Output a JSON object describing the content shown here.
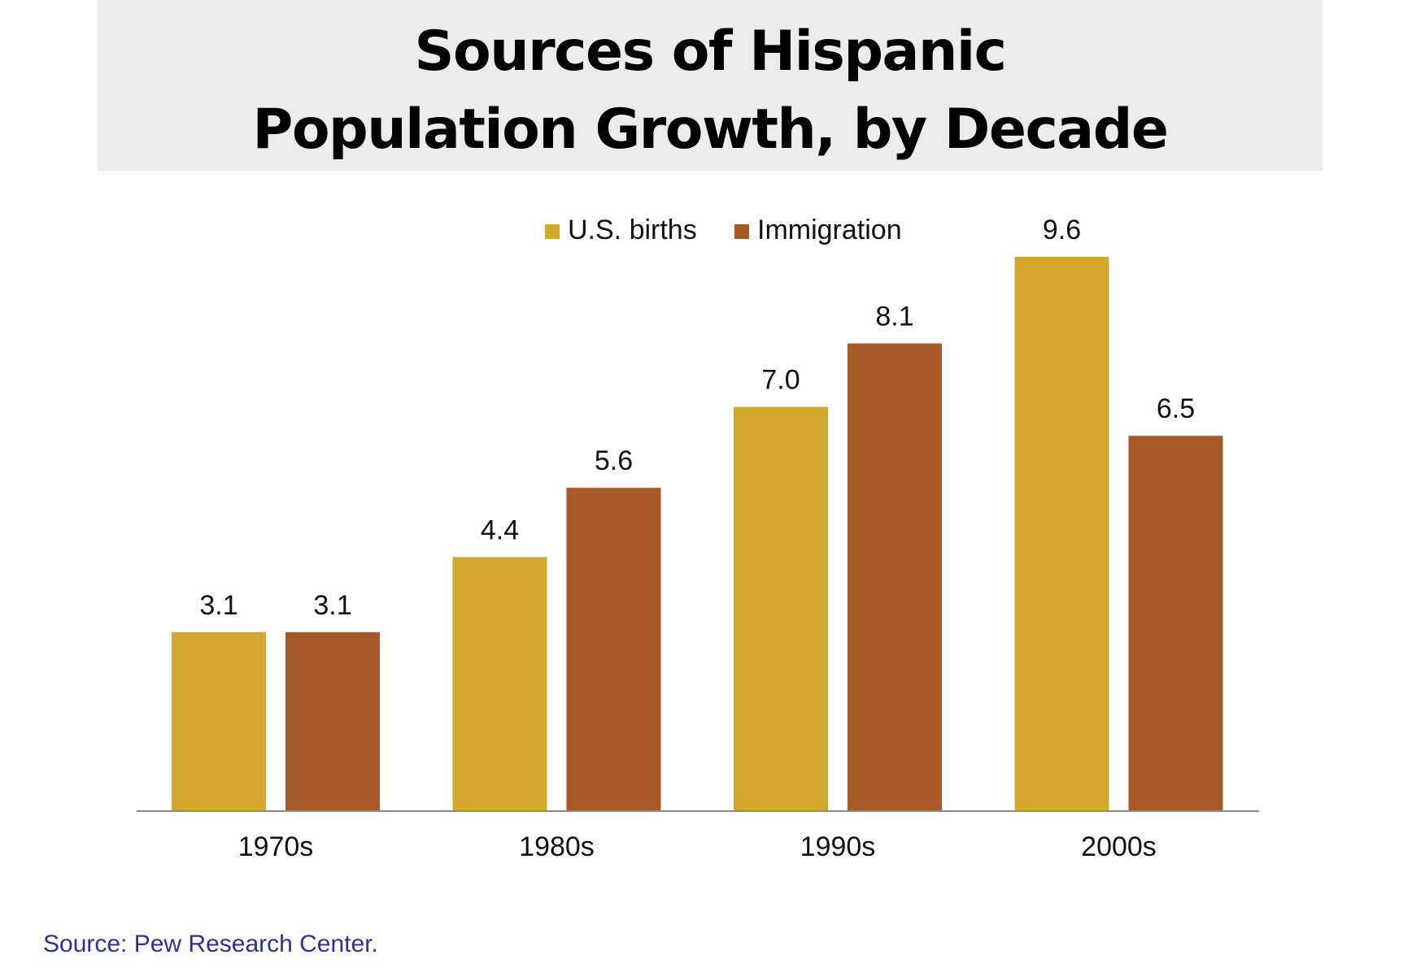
{
  "title_lines": [
    "Sources of Hispanic",
    "Population Growth, by Decade"
  ],
  "chart_data": {
    "type": "bar",
    "title": "Sources of Hispanic Population Growth, by Decade",
    "categories": [
      "1970s",
      "1980s",
      "1990s",
      "2000s"
    ],
    "series": [
      {
        "name": "U.S. births",
        "color": "#d4a82f",
        "values": [
          3.1,
          4.4,
          7.0,
          9.6
        ]
      },
      {
        "name": "Immigration",
        "color": "#a65a27",
        "values": [
          3.1,
          5.6,
          8.1,
          6.5
        ]
      }
    ],
    "value_labels": [
      [
        "3.1",
        "4.4",
        "7.0",
        "9.6"
      ],
      [
        "3.1",
        "5.6",
        "8.1",
        "6.5"
      ]
    ],
    "legend_position": "top-center",
    "xlabel": "",
    "ylabel": "",
    "ylim": [
      0,
      10
    ],
    "grid": false
  },
  "source": "Source: Pew Research Center."
}
